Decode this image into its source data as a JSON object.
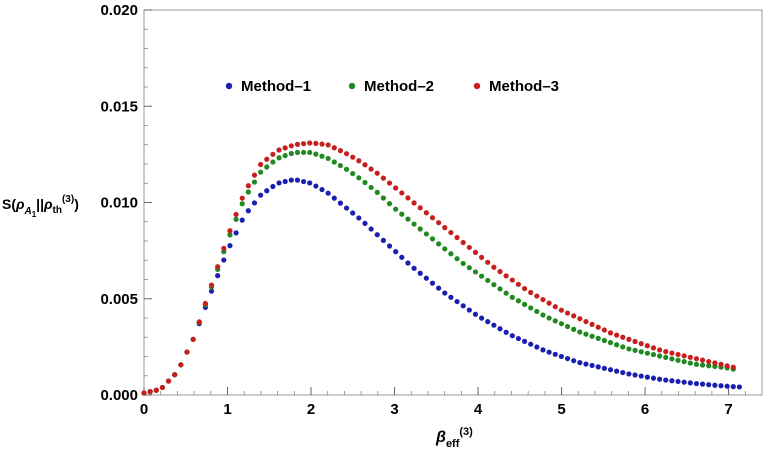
{
  "chart_data": {
    "type": "scatter",
    "title": "",
    "xlabel": "β_eff^(3)",
    "ylabel": "S(ρ_A1||ρ_th^(3))",
    "xlim": [
      0,
      7.4
    ],
    "ylim": [
      0,
      0.02
    ],
    "x_ticks": [
      "0",
      "1",
      "2",
      "3",
      "4",
      "5",
      "6",
      "7"
    ],
    "y_ticks": [
      "0.000",
      "0.005",
      "0.010",
      "0.015",
      "0.020"
    ],
    "legend_position": "top-center",
    "x_range": {
      "start": 0.0,
      "stop": 7.2,
      "step": 0.0735
    },
    "series": [
      {
        "name": "Method–1",
        "color": "#1a1fb0",
        "anchors": [
          [
            0,
            0.0001
          ],
          [
            0.2,
            0.0003
          ],
          [
            0.4,
            0.0012
          ],
          [
            0.6,
            0.003
          ],
          [
            0.8,
            0.0053
          ],
          [
            1.0,
            0.0075
          ],
          [
            1.2,
            0.0093
          ],
          [
            1.4,
            0.0104
          ],
          [
            1.6,
            0.011
          ],
          [
            1.8,
            0.0112
          ],
          [
            2.0,
            0.011
          ],
          [
            2.2,
            0.0105
          ],
          [
            2.4,
            0.0098
          ],
          [
            2.6,
            0.0091
          ],
          [
            2.8,
            0.0083
          ],
          [
            3.0,
            0.0075
          ],
          [
            3.2,
            0.0067
          ],
          [
            3.4,
            0.006
          ],
          [
            3.6,
            0.0053
          ],
          [
            3.8,
            0.0047
          ],
          [
            4.0,
            0.0041
          ],
          [
            4.2,
            0.0036
          ],
          [
            4.4,
            0.0031
          ],
          [
            4.6,
            0.0027
          ],
          [
            4.8,
            0.0023
          ],
          [
            5.0,
            0.002
          ],
          [
            5.2,
            0.0017
          ],
          [
            5.4,
            0.0015
          ],
          [
            5.6,
            0.0013
          ],
          [
            5.8,
            0.0011
          ],
          [
            6.0,
            0.00095
          ],
          [
            6.2,
            0.0008
          ],
          [
            6.4,
            0.0007
          ],
          [
            6.6,
            0.0006
          ],
          [
            6.8,
            0.00052
          ],
          [
            7.0,
            0.00045
          ],
          [
            7.2,
            0.0004
          ]
        ]
      },
      {
        "name": "Method–2",
        "color": "#1f8a1f",
        "anchors": [
          [
            0,
            0.0001
          ],
          [
            0.2,
            0.0003
          ],
          [
            0.4,
            0.0012
          ],
          [
            0.6,
            0.003
          ],
          [
            0.8,
            0.0055
          ],
          [
            1.0,
            0.008
          ],
          [
            1.2,
            0.0102
          ],
          [
            1.4,
            0.0116
          ],
          [
            1.6,
            0.0123
          ],
          [
            1.8,
            0.0126
          ],
          [
            2.0,
            0.0126
          ],
          [
            2.2,
            0.0123
          ],
          [
            2.4,
            0.0118
          ],
          [
            2.6,
            0.0112
          ],
          [
            2.8,
            0.0105
          ],
          [
            3.0,
            0.0097
          ],
          [
            3.2,
            0.009
          ],
          [
            3.4,
            0.0083
          ],
          [
            3.6,
            0.0076
          ],
          [
            3.8,
            0.0069
          ],
          [
            4.0,
            0.0063
          ],
          [
            4.2,
            0.0057
          ],
          [
            4.4,
            0.0051
          ],
          [
            4.6,
            0.0046
          ],
          [
            4.8,
            0.0041
          ],
          [
            5.0,
            0.0037
          ],
          [
            5.2,
            0.0033
          ],
          [
            5.4,
            0.003
          ],
          [
            5.6,
            0.0027
          ],
          [
            5.8,
            0.0024
          ],
          [
            6.0,
            0.0022
          ],
          [
            6.2,
            0.002
          ],
          [
            6.4,
            0.0018
          ],
          [
            6.6,
            0.0016
          ],
          [
            6.8,
            0.0015
          ],
          [
            7.0,
            0.0014
          ],
          [
            7.1,
            0.0013
          ]
        ]
      },
      {
        "name": "Method–3",
        "color": "#c81e1e",
        "anchors": [
          [
            0,
            0.0001
          ],
          [
            0.2,
            0.0003
          ],
          [
            0.4,
            0.0012
          ],
          [
            0.6,
            0.003
          ],
          [
            0.8,
            0.0056
          ],
          [
            1.0,
            0.0082
          ],
          [
            1.2,
            0.0105
          ],
          [
            1.4,
            0.012
          ],
          [
            1.6,
            0.0127
          ],
          [
            1.8,
            0.013
          ],
          [
            2.0,
            0.0131
          ],
          [
            2.2,
            0.013
          ],
          [
            2.4,
            0.0126
          ],
          [
            2.6,
            0.0121
          ],
          [
            2.8,
            0.0115
          ],
          [
            3.0,
            0.0108
          ],
          [
            3.2,
            0.0101
          ],
          [
            3.4,
            0.0094
          ],
          [
            3.6,
            0.0087
          ],
          [
            3.8,
            0.008
          ],
          [
            4.0,
            0.0073
          ],
          [
            4.2,
            0.0066
          ],
          [
            4.4,
            0.006
          ],
          [
            4.6,
            0.0054
          ],
          [
            4.8,
            0.0049
          ],
          [
            5.0,
            0.0044
          ],
          [
            5.2,
            0.004
          ],
          [
            5.4,
            0.0036
          ],
          [
            5.6,
            0.0032
          ],
          [
            5.8,
            0.0029
          ],
          [
            6.0,
            0.0026
          ],
          [
            6.2,
            0.0023
          ],
          [
            6.4,
            0.0021
          ],
          [
            6.6,
            0.0019
          ],
          [
            6.8,
            0.0017
          ],
          [
            7.0,
            0.0015
          ],
          [
            7.1,
            0.0014
          ]
        ]
      }
    ]
  }
}
